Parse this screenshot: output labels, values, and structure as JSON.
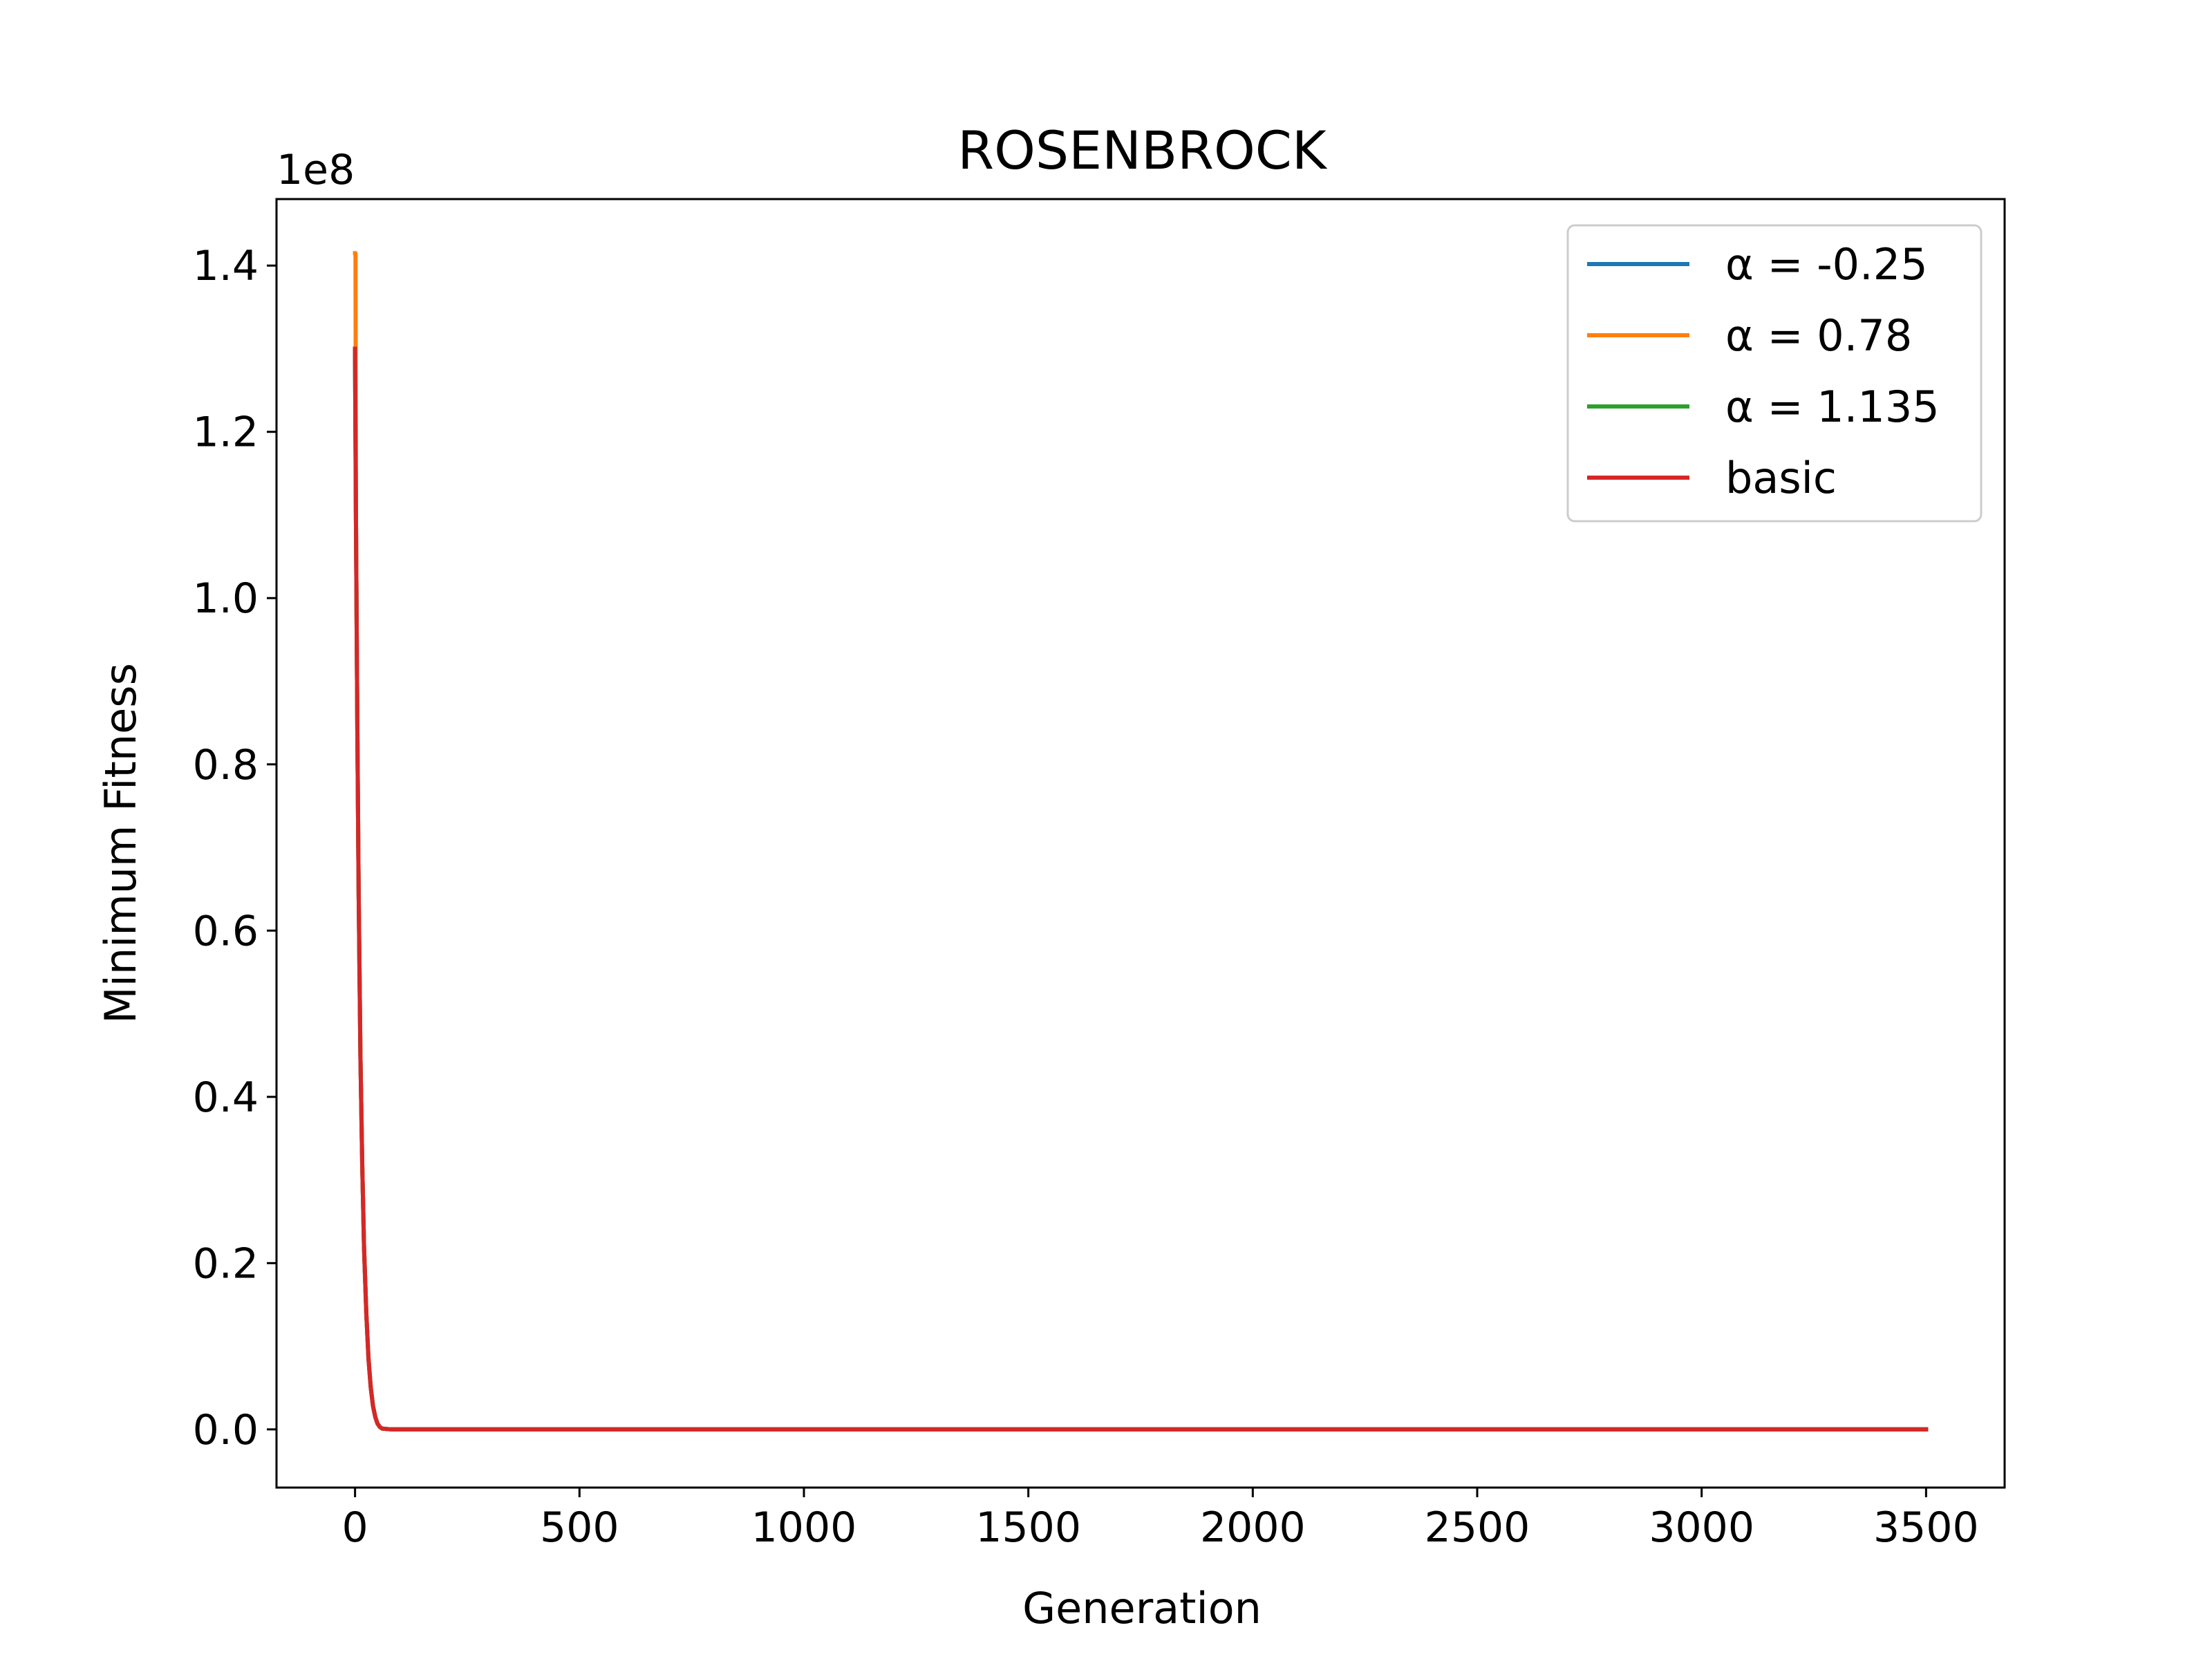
{
  "chart_data": {
    "type": "line",
    "title": "ROSENBROCK",
    "xlabel": "Generation",
    "ylabel": "Minimum Fitness",
    "y_offset_label": "1e8",
    "xlim": [
      -175,
      3675
    ],
    "ylim": [
      -0.07,
      1.48
    ],
    "xticks": [
      0,
      500,
      1000,
      1500,
      2000,
      2500,
      3000,
      3500
    ],
    "xtick_labels": [
      "0",
      "500",
      "1000",
      "1500",
      "2000",
      "2500",
      "3000",
      "3500"
    ],
    "yticks": [
      0.0,
      0.2,
      0.4,
      0.6,
      0.8,
      1.0,
      1.2,
      1.4
    ],
    "ytick_labels": [
      "0.0",
      "0.2",
      "0.4",
      "0.6",
      "0.8",
      "1.0",
      "1.2",
      "1.4"
    ],
    "grid": false,
    "legend_position": "top-right",
    "series": [
      {
        "name": "α = -0.25",
        "color": "#1f77b4",
        "x": [
          0,
          2,
          5,
          8,
          12,
          16,
          20,
          25,
          30,
          35,
          40,
          45,
          50,
          55,
          60,
          80,
          150,
          500,
          1000,
          1500,
          2000,
          2500,
          3000,
          3500
        ],
        "y": [
          1.3,
          1.1,
          0.85,
          0.65,
          0.45,
          0.32,
          0.22,
          0.14,
          0.085,
          0.05,
          0.028,
          0.015,
          0.007,
          0.003,
          0.001,
          0.0,
          0.0,
          0.0,
          0.0,
          0.0,
          0.0,
          0.0,
          0.0,
          0.0
        ]
      },
      {
        "name": "α = 0.78",
        "color": "#ff7f0e",
        "x": [
          0,
          1,
          2,
          5,
          8,
          12,
          16,
          20,
          25,
          30,
          35,
          40,
          45,
          50,
          55,
          60,
          80,
          150,
          500,
          1000,
          1500,
          2000,
          2500,
          3000,
          3500
        ],
        "y": [
          1.415,
          1.415,
          1.1,
          0.85,
          0.65,
          0.45,
          0.32,
          0.22,
          0.14,
          0.085,
          0.05,
          0.028,
          0.015,
          0.007,
          0.003,
          0.001,
          0.0,
          0.0,
          0.0,
          0.0,
          0.0,
          0.0,
          0.0,
          0.0,
          0.0
        ]
      },
      {
        "name": "α = 1.135",
        "color": "#2ca02c",
        "x": [
          0,
          2,
          5,
          8,
          12,
          16,
          20,
          25,
          30,
          35,
          40,
          45,
          50,
          55,
          60,
          80,
          150,
          500,
          1000,
          1500,
          2000,
          2500,
          3000,
          3500
        ],
        "y": [
          1.3,
          1.1,
          0.85,
          0.65,
          0.45,
          0.32,
          0.22,
          0.14,
          0.085,
          0.05,
          0.028,
          0.015,
          0.007,
          0.003,
          0.001,
          0.0,
          0.0,
          0.0,
          0.0,
          0.0,
          0.0,
          0.0,
          0.0,
          0.0
        ]
      },
      {
        "name": "basic",
        "color": "#d62728",
        "x": [
          0,
          2,
          5,
          8,
          12,
          16,
          20,
          25,
          30,
          35,
          40,
          45,
          50,
          55,
          60,
          80,
          150,
          500,
          1000,
          1500,
          2000,
          2500,
          3000,
          3500
        ],
        "y": [
          1.3,
          1.1,
          0.85,
          0.65,
          0.45,
          0.32,
          0.22,
          0.14,
          0.085,
          0.05,
          0.028,
          0.015,
          0.007,
          0.003,
          0.001,
          0.0,
          0.0,
          0.0,
          0.0,
          0.0,
          0.0,
          0.0,
          0.0,
          0.0
        ]
      }
    ]
  }
}
